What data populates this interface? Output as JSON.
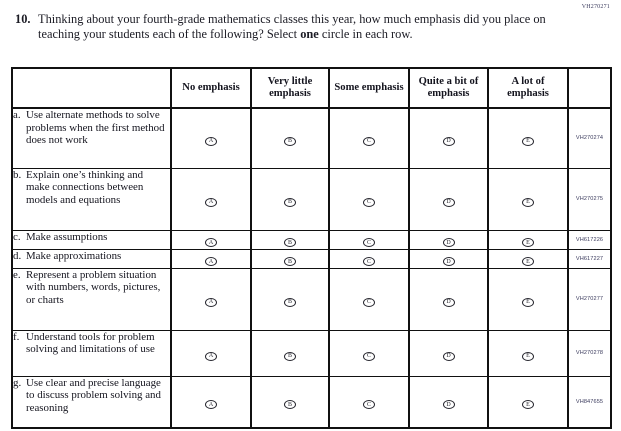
{
  "page_code": "VH270271",
  "question": {
    "number": "10.",
    "text_before_bold": "Thinking about your fourth-grade mathematics classes this year, how much emphasis did you place on teaching your students each of the following? Select ",
    "bold_word": "one",
    "text_after_bold": " circle in each row."
  },
  "table": {
    "columns": [
      "No emphasis",
      "Very little emphasis",
      "Some emphasis",
      "Quite a bit of emphasis",
      "A lot of emphasis"
    ],
    "option_letters": [
      "A",
      "B",
      "C",
      "D",
      "E"
    ],
    "rows": [
      {
        "letter": "a.",
        "text": "Use alternate methods to solve problems when the first method does not work",
        "code": "VH270274"
      },
      {
        "letter": "b.",
        "text": "Explain one’s thinking and make connections between models and equations",
        "code": "VH270275"
      },
      {
        "letter": "c.",
        "text": "Make assumptions",
        "code": "VH617226"
      },
      {
        "letter": "d.",
        "text": "Make approximations",
        "code": "VH617227"
      },
      {
        "letter": "e.",
        "text": "Represent a problem situation with numbers, words, pictures, or charts",
        "code": "VH270277"
      },
      {
        "letter": "f.",
        "text": "Understand tools for problem solving and limitations of use",
        "code": "VH270278"
      },
      {
        "letter": "g.",
        "text": "Use clear and precise language to discuss problem solving and reasoning",
        "code": "VH847655"
      }
    ]
  }
}
